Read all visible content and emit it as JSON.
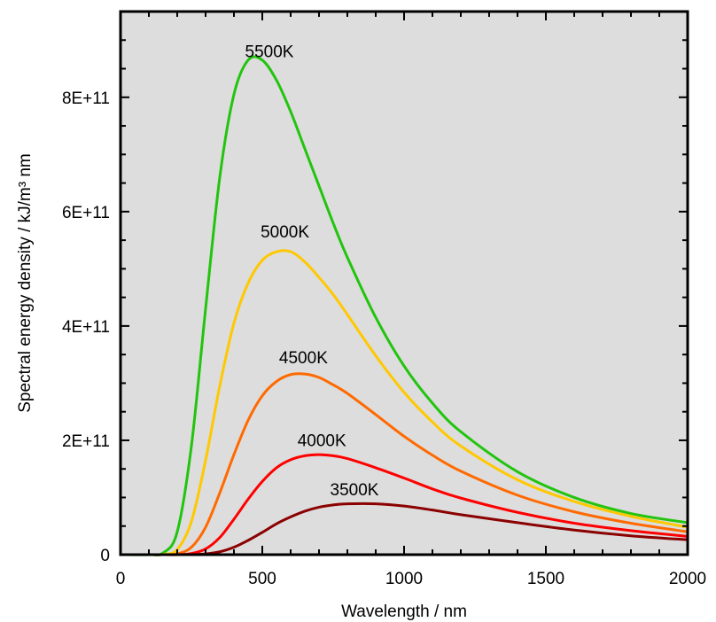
{
  "chart_data": {
    "type": "line",
    "title": "",
    "xlabel": "Wavelength / nm",
    "ylabel": "Spectral energy density / kJ/m³ nm",
    "xlim": [
      0,
      2000
    ],
    "ylim": [
      0,
      950000000000
    ],
    "x_ticks": [
      0,
      500,
      1000,
      1500,
      2000
    ],
    "x_tick_labels": [
      "0",
      "500",
      "1000",
      "1500",
      "2000"
    ],
    "y_ticks": [
      0,
      200000000000,
      400000000000,
      600000000000,
      800000000000
    ],
    "y_tick_labels": [
      "0",
      "2E+11",
      "4E+11",
      "6E+11",
      "8E+11"
    ],
    "grid": false,
    "background_color": "#dddddd",
    "x": [
      0,
      100,
      150,
      200,
      250,
      300,
      350,
      400,
      450,
      500,
      550,
      600,
      650,
      700,
      750,
      800,
      900,
      1000,
      1100,
      1200,
      1400,
      1600,
      1800,
      2000
    ],
    "series": [
      {
        "name": "5500K",
        "color": "#22c40e",
        "label_at": [
          525,
          870000000000
        ],
        "values": [
          0,
          100000000,
          3000000000,
          40000000000,
          190000000000,
          430000000000,
          660000000000,
          805000000000,
          865000000000,
          865000000000,
          830000000000,
          775000000000,
          710000000000,
          645000000000,
          580000000000,
          520000000000,
          415000000000,
          330000000000,
          265000000000,
          215000000000,
          145000000000,
          100000000000,
          72000000000,
          56000000000
        ]
      },
      {
        "name": "5000K",
        "color": "#ffc800",
        "label_at": [
          580,
          555000000000
        ],
        "values": [
          0,
          0,
          500000000,
          9000000000,
          58000000000,
          165000000000,
          295000000000,
          405000000000,
          475000000000,
          515000000000,
          530000000000,
          530000000000,
          512000000000,
          485000000000,
          455000000000,
          420000000000,
          348000000000,
          284000000000,
          232000000000,
          190000000000,
          131000000000,
          93000000000,
          67000000000,
          48000000000
        ]
      },
      {
        "name": "4500K",
        "color": "#ff6a00",
        "label_at": [
          645,
          335000000000
        ],
        "values": [
          0,
          0,
          0,
          1500000000,
          13000000000,
          48000000000,
          108000000000,
          175000000000,
          235000000000,
          278000000000,
          303000000000,
          315000000000,
          316000000000,
          310000000000,
          297000000000,
          282000000000,
          245000000000,
          207000000000,
          174000000000,
          146000000000,
          104000000000,
          75000000000,
          55000000000,
          40000000000
        ]
      },
      {
        "name": "4000K",
        "color": "#ff0000",
        "label_at": [
          710,
          190000000000
        ],
        "values": [
          0,
          0,
          0,
          0,
          2000000000,
          10000000000,
          30000000000,
          62000000000,
          97000000000,
          128000000000,
          152000000000,
          166000000000,
          173000000000,
          175000000000,
          173000000000,
          168000000000,
          152000000000,
          134000000000,
          115000000000,
          99000000000,
          74000000000,
          55000000000,
          42000000000,
          32000000000
        ]
      },
      {
        "name": "3500K",
        "color": "#8b0000",
        "label_at": [
          825,
          104000000000
        ],
        "values": [
          0,
          0,
          0,
          0,
          0,
          1300000000,
          5000000000,
          13000000000,
          25000000000,
          39000000000,
          54000000000,
          66000000000,
          76000000000,
          83000000000,
          87000000000,
          89000000000,
          89000000000,
          85000000000,
          78000000000,
          70000000000,
          56000000000,
          43000000000,
          33000000000,
          26000000000
        ]
      }
    ]
  }
}
